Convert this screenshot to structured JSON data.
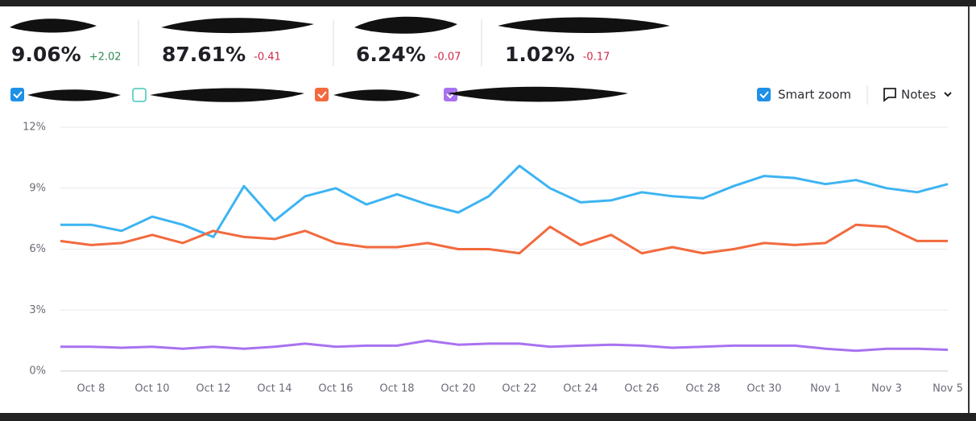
{
  "metrics": [
    {
      "value": "9.06%",
      "change": "+2.02"
    },
    {
      "value": "87.61%",
      "change": "-0.41"
    },
    {
      "value": "6.24%",
      "change": "-0.07"
    },
    {
      "value": "1.02%",
      "change": "-0.17"
    }
  ],
  "controls": {
    "smart_zoom": "Smart zoom",
    "notes": "Notes"
  },
  "chart_data": {
    "type": "line",
    "categories": [
      null,
      "Oct 8",
      null,
      "Oct 10",
      null,
      "Oct 12",
      null,
      "Oct 14",
      null,
      "Oct 16",
      null,
      "Oct 18",
      null,
      "Oct 20",
      null,
      "Oct 22",
      null,
      "Oct 24",
      null,
      "Oct 26",
      null,
      "Oct 28",
      null,
      "Oct 30",
      null,
      "Nov 1",
      null,
      "Nov 3",
      null,
      "Nov 5"
    ],
    "series": [
      {
        "color": "#3db4f2",
        "values": [
          7.2,
          7.2,
          6.9,
          7.6,
          7.2,
          6.6,
          9.1,
          7.4,
          8.6,
          9.0,
          8.2,
          8.7,
          8.2,
          7.8,
          8.6,
          10.1,
          9.0,
          8.3,
          8.4,
          8.8,
          8.6,
          8.5,
          9.1,
          9.6,
          9.5,
          9.2,
          9.4,
          9.0,
          8.8,
          9.2
        ]
      },
      {
        "color": "#f26a3d",
        "values": [
          6.4,
          6.2,
          6.3,
          6.7,
          6.3,
          6.9,
          6.6,
          6.5,
          6.9,
          6.3,
          6.1,
          6.1,
          6.3,
          6.0,
          6.0,
          5.8,
          7.1,
          6.2,
          6.7,
          5.8,
          6.1,
          5.8,
          6.0,
          6.3,
          6.2,
          6.3,
          7.2,
          7.1,
          6.4,
          6.4
        ]
      },
      {
        "color": "#a872f0",
        "values": [
          1.2,
          1.2,
          1.15,
          1.2,
          1.1,
          1.2,
          1.1,
          1.2,
          1.35,
          1.2,
          1.25,
          1.25,
          1.5,
          1.3,
          1.35,
          1.35,
          1.2,
          1.25,
          1.3,
          1.25,
          1.15,
          1.2,
          1.25,
          1.25,
          1.25,
          1.1,
          1.0,
          1.1,
          1.1,
          1.05
        ]
      }
    ],
    "ylim": [
      0,
      12
    ],
    "yticks": [
      {
        "value": 0,
        "label": "0%"
      },
      {
        "value": 3,
        "label": "3%"
      },
      {
        "value": 6,
        "label": "6%"
      },
      {
        "value": 9,
        "label": "9%"
      },
      {
        "value": 12,
        "label": "12%"
      }
    ],
    "grid": true
  }
}
